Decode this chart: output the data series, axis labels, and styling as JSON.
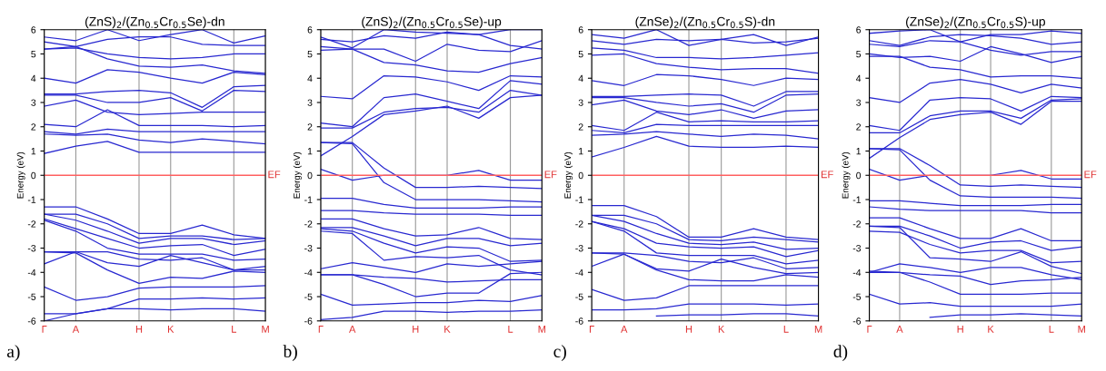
{
  "chart_data": [
    {
      "type": "line",
      "title": "(ZnS)$_{2}$/(Zn$_{0.5}$Cr$_{0.5}$Se)-dn",
      "ylabel": "Energy (eV)",
      "color": "#2828d0",
      "annotations": [
        "a)"
      ],
      "categories": [
        "Γ",
        "A",
        null,
        "H",
        "K",
        null,
        "L",
        "M"
      ],
      "ylim": [
        -6,
        6
      ],
      "yticks": [
        -6,
        -5,
        -4,
        -3,
        -2,
        -1,
        0,
        1,
        2,
        3,
        4,
        5,
        6
      ],
      "grid": "x",
      "ref_lines": [
        {
          "axis": "y",
          "value": 0,
          "label": "EF",
          "color": "#ff6060"
        }
      ],
      "series": [
        {
          "values": [
            0.9,
            1.2,
            1.4,
            0.95,
            0.95,
            0.95,
            0.95,
            0.95
          ]
        },
        {
          "values": [
            1.7,
            1.65,
            1.7,
            1.45,
            1.35,
            1.5,
            1.4,
            1.3
          ]
        },
        {
          "values": [
            1.8,
            1.7,
            1.9,
            1.8,
            1.8,
            1.8,
            1.8,
            1.8
          ]
        },
        {
          "values": [
            2.1,
            2.0,
            2.7,
            2.05,
            2.05,
            2.05,
            2.0,
            2.05
          ]
        },
        {
          "values": [
            2.85,
            3.1,
            2.6,
            2.5,
            2.55,
            2.6,
            2.6,
            2.6
          ]
        },
        {
          "values": [
            3.3,
            3.3,
            3.0,
            3.0,
            3.2,
            2.65,
            3.5,
            3.45
          ]
        },
        {
          "values": [
            3.35,
            3.35,
            3.45,
            3.5,
            3.4,
            2.8,
            3.65,
            3.7
          ]
        },
        {
          "values": [
            4.0,
            3.8,
            4.35,
            4.25,
            4.0,
            3.8,
            4.25,
            4.15
          ]
        },
        {
          "values": [
            5.2,
            5.3,
            4.8,
            4.5,
            4.45,
            4.55,
            4.3,
            4.2
          ]
        },
        {
          "values": [
            5.2,
            5.25,
            5.0,
            4.85,
            4.8,
            4.85,
            5.0,
            5.0
          ]
        },
        {
          "values": [
            5.5,
            5.3,
            5.6,
            5.7,
            5.7,
            5.4,
            5.35,
            5.35
          ]
        },
        {
          "values": [
            5.7,
            5.55,
            6.0,
            5.55,
            5.8,
            6.0,
            5.45,
            5.75
          ]
        },
        {
          "values": [
            -1.3,
            -1.3,
            -1.8,
            -2.4,
            -2.4,
            -2.05,
            -2.45,
            -2.6
          ]
        },
        {
          "values": [
            -1.6,
            -1.6,
            -2.0,
            -2.6,
            -2.5,
            -2.5,
            -2.65,
            -2.6
          ]
        },
        {
          "values": [
            -1.6,
            -1.85,
            -2.3,
            -2.8,
            -2.6,
            -2.6,
            -2.85,
            -2.7
          ]
        },
        {
          "values": [
            -1.8,
            -2.2,
            -2.6,
            -3.0,
            -2.9,
            -2.85,
            -3.3,
            -3.05
          ]
        },
        {
          "values": [
            -1.85,
            -2.3,
            -3.0,
            -3.25,
            -3.25,
            -3.25,
            -3.5,
            -3.45
          ]
        },
        {
          "values": [
            -3.15,
            -3.15,
            -3.15,
            -3.45,
            -3.5,
            -3.4,
            -3.9,
            -3.75
          ]
        },
        {
          "values": [
            -3.65,
            -3.15,
            -3.6,
            -3.75,
            -3.3,
            -3.6,
            -3.9,
            -3.9
          ]
        },
        {
          "values": [
            -3.15,
            -3.2,
            -3.9,
            -4.45,
            -4.2,
            -4.25,
            -3.95,
            -4.0
          ]
        },
        {
          "values": [
            -4.6,
            -5.15,
            -5.0,
            -4.65,
            -4.6,
            -4.6,
            -4.6,
            -4.55
          ]
        },
        {
          "values": [
            -5.7,
            -5.7,
            -5.5,
            -5.1,
            -5.1,
            -5.05,
            -5.1,
            -5.05
          ]
        },
        {
          "values": [
            -6.0,
            -5.7,
            -5.5,
            -5.5,
            -5.55,
            -5.5,
            -5.5,
            -5.6
          ]
        }
      ]
    },
    {
      "type": "line",
      "title": "(ZnS)$_{2}$/(Zn$_{0.5}$Cr$_{0.5}$Se)-up",
      "ylabel": "Energy (eV)",
      "color": "#2828d0",
      "annotations": [
        "b)"
      ],
      "categories": [
        "Γ",
        "A",
        null,
        "H",
        "K",
        null,
        "L",
        "M"
      ],
      "ylim": [
        -6,
        6
      ],
      "yticks": [
        -6,
        -5,
        -4,
        -3,
        -2,
        -1,
        0,
        1,
        2,
        3,
        4,
        5,
        6
      ],
      "grid": "x",
      "ref_lines": [
        {
          "axis": "y",
          "value": 0,
          "label": "EF",
          "color": "#ff6060"
        }
      ],
      "series": [
        {
          "values": [
            0.8,
            1.6,
            2.5,
            2.65,
            2.85,
            2.35,
            3.2,
            3.3
          ]
        },
        {
          "values": [
            1.95,
            1.95,
            2.6,
            2.75,
            2.8,
            2.6,
            3.5,
            3.3
          ]
        },
        {
          "values": [
            2.15,
            2.0,
            3.2,
            3.35,
            3.05,
            2.75,
            3.9,
            3.75
          ]
        },
        {
          "values": [
            3.25,
            3.15,
            4.1,
            4.05,
            3.85,
            3.5,
            4.1,
            4.05
          ]
        },
        {
          "values": [
            5.15,
            5.2,
            4.65,
            4.55,
            4.3,
            4.25,
            4.6,
            4.85
          ]
        },
        {
          "values": [
            5.3,
            5.2,
            5.2,
            4.7,
            5.4,
            5.15,
            5.1,
            5.55
          ]
        },
        {
          "values": [
            5.6,
            5.5,
            5.75,
            5.65,
            5.9,
            5.8,
            5.35,
            5.2
          ]
        },
        {
          "values": [
            5.7,
            5.25,
            6.0,
            5.9,
            5.85,
            5.8,
            6.0,
            6.0
          ]
        },
        {
          "values": [
            0.25,
            -0.2,
            0.0,
            0.0,
            0.0,
            0.2,
            -0.2,
            -0.2
          ]
        },
        {
          "values": [
            1.35,
            1.35,
            0.3,
            -0.5,
            -0.5,
            -0.45,
            -0.5,
            -0.55
          ]
        },
        {
          "values": [
            1.35,
            1.3,
            -0.3,
            -1.0,
            -1.0,
            -1.0,
            -1.05,
            -1.1
          ]
        },
        {
          "values": [
            -0.95,
            -0.95,
            -1.2,
            -1.35,
            -1.35,
            -1.35,
            -1.3,
            -1.3
          ]
        },
        {
          "values": [
            -1.45,
            -1.45,
            -1.55,
            -1.6,
            -1.6,
            -1.6,
            -1.65,
            -1.65
          ]
        },
        {
          "values": [
            -1.8,
            -1.8,
            -2.2,
            -2.5,
            -2.45,
            -2.15,
            -2.6,
            -2.65
          ]
        },
        {
          "values": [
            -2.15,
            -2.15,
            -2.5,
            -2.9,
            -2.6,
            -2.6,
            -2.9,
            -2.8
          ]
        },
        {
          "values": [
            -2.2,
            -2.3,
            -2.8,
            -3.2,
            -2.95,
            -3.0,
            -3.55,
            -3.5
          ]
        },
        {
          "values": [
            -2.3,
            -2.4,
            -3.5,
            -3.35,
            -3.4,
            -3.3,
            -3.9,
            -4.1
          ]
        },
        {
          "values": [
            -3.85,
            -3.6,
            -3.8,
            -4.0,
            -3.65,
            -3.75,
            -3.65,
            -3.55
          ]
        },
        {
          "values": [
            -4.1,
            -4.1,
            -4.5,
            -5.0,
            -4.85,
            -4.85,
            -4.05,
            -4.0
          ]
        },
        {
          "values": [
            -4.1,
            -4.1,
            -4.2,
            -4.25,
            -4.4,
            -4.35,
            -4.3,
            -4.3
          ]
        },
        {
          "values": [
            -4.9,
            -5.35,
            -5.3,
            -5.25,
            -5.25,
            -5.15,
            -5.2,
            -4.95
          ]
        },
        {
          "values": [
            -5.95,
            -5.85,
            -5.6,
            -5.6,
            -5.65,
            -5.6,
            -5.6,
            -5.55
          ]
        }
      ]
    },
    {
      "type": "line",
      "title": "(ZnSe)$_{2}$/(Zn$_{0.5}$Cr$_{0.5}$S)-dn",
      "ylabel": "Energy (eV)",
      "color": "#2828d0",
      "annotations": [
        "c)"
      ],
      "categories": [
        "Γ",
        "A",
        null,
        "H",
        "K",
        null,
        "L",
        "M"
      ],
      "ylim": [
        -6,
        6
      ],
      "yticks": [
        -6,
        -5,
        -4,
        -3,
        -2,
        -1,
        0,
        1,
        2,
        3,
        4,
        5,
        6
      ],
      "grid": "x",
      "ref_lines": [
        {
          "axis": "y",
          "value": 0,
          "label": "EF",
          "color": "#ff6060"
        }
      ],
      "series": [
        {
          "values": [
            0.75,
            1.15,
            1.6,
            1.2,
            1.15,
            1.15,
            1.2,
            1.15
          ]
        },
        {
          "values": [
            1.65,
            1.7,
            1.8,
            1.7,
            1.6,
            1.7,
            1.65,
            1.5
          ]
        },
        {
          "values": [
            1.85,
            1.75,
            2.1,
            2.05,
            2.05,
            2.05,
            2.05,
            2.05
          ]
        },
        {
          "values": [
            2.05,
            1.85,
            2.6,
            2.2,
            2.25,
            2.2,
            2.2,
            2.25
          ]
        },
        {
          "values": [
            2.9,
            3.1,
            2.65,
            2.5,
            2.7,
            2.35,
            2.65,
            2.7
          ]
        },
        {
          "values": [
            3.2,
            3.2,
            3.0,
            2.85,
            2.95,
            2.6,
            3.3,
            3.35
          ]
        },
        {
          "values": [
            3.25,
            3.25,
            3.3,
            3.35,
            3.3,
            2.85,
            3.45,
            3.45
          ]
        },
        {
          "values": [
            3.9,
            3.7,
            4.15,
            4.1,
            3.95,
            3.7,
            4.0,
            3.95
          ]
        },
        {
          "values": [
            4.95,
            5.0,
            4.6,
            4.45,
            4.35,
            4.4,
            4.4,
            4.2
          ]
        },
        {
          "values": [
            5.25,
            5.15,
            4.85,
            4.85,
            4.8,
            4.85,
            4.95,
            5.05
          ]
        },
        {
          "values": [
            5.55,
            5.4,
            5.6,
            5.55,
            5.6,
            5.45,
            5.5,
            5.65
          ]
        },
        {
          "values": [
            5.8,
            5.65,
            6.0,
            5.35,
            5.6,
            5.8,
            5.35,
            5.7
          ]
        },
        {
          "values": [
            -1.25,
            -1.25,
            -1.7,
            -2.55,
            -2.55,
            -2.2,
            -2.55,
            -2.65
          ]
        },
        {
          "values": [
            -1.65,
            -1.65,
            -2.0,
            -2.65,
            -2.7,
            -2.55,
            -2.65,
            -2.75
          ]
        },
        {
          "values": [
            -1.65,
            -1.9,
            -2.4,
            -2.8,
            -2.85,
            -2.75,
            -3.05,
            -3.0
          ]
        },
        {
          "values": [
            -1.9,
            -2.2,
            -2.8,
            -2.95,
            -3.0,
            -2.95,
            -3.35,
            -3.1
          ]
        },
        {
          "values": [
            -1.9,
            -2.3,
            -3.2,
            -3.3,
            -3.3,
            -3.3,
            -3.65,
            -3.5
          ]
        },
        {
          "values": [
            -3.2,
            -3.2,
            -3.3,
            -3.55,
            -3.6,
            -3.4,
            -3.85,
            -3.8
          ]
        },
        {
          "values": [
            -3.75,
            -3.25,
            -3.85,
            -3.95,
            -3.45,
            -3.8,
            -4.05,
            -4.0
          ]
        },
        {
          "values": [
            -3.2,
            -3.25,
            -3.9,
            -4.3,
            -4.35,
            -4.35,
            -4.1,
            -4.2
          ]
        },
        {
          "values": [
            -4.7,
            -5.15,
            -5.05,
            -4.55,
            -4.55,
            -4.55,
            -4.55,
            -4.55
          ]
        },
        {
          "values": [
            -5.55,
            -5.55,
            -5.5,
            -5.3,
            -5.3,
            -5.3,
            -5.35,
            -5.3
          ]
        },
        {
          "values": [
            null,
            null,
            -5.8,
            -5.75,
            -5.75,
            -5.7,
            -5.7,
            -5.8
          ]
        }
      ]
    },
    {
      "type": "line",
      "title": "(ZnSe)$_{2}$/(Zn$_{0.5}$Cr$_{0.5}$S)-up",
      "ylabel": "Energy (eV)",
      "color": "#2828d0",
      "annotations": [
        "d)"
      ],
      "categories": [
        "Γ",
        "A",
        null,
        "H",
        "K",
        null,
        "L",
        "M"
      ],
      "ylim": [
        -6,
        6
      ],
      "yticks": [
        -6,
        -5,
        -4,
        -3,
        -2,
        -1,
        0,
        1,
        2,
        3,
        4,
        5,
        6
      ],
      "grid": "x",
      "ref_lines": [
        {
          "axis": "y",
          "value": 0,
          "label": "EF",
          "color": "#ff6060"
        }
      ],
      "series": [
        {
          "values": [
            0.7,
            1.55,
            2.3,
            2.5,
            2.6,
            2.1,
            3.05,
            3.05
          ]
        },
        {
          "values": [
            1.75,
            1.75,
            2.45,
            2.65,
            2.65,
            2.35,
            3.1,
            3.15
          ]
        },
        {
          "values": [
            2.05,
            1.85,
            3.1,
            3.2,
            3.15,
            2.65,
            3.25,
            3.2
          ]
        },
        {
          "values": [
            3.2,
            3.0,
            3.8,
            3.95,
            3.75,
            3.4,
            3.75,
            3.6
          ]
        },
        {
          "values": [
            4.9,
            4.9,
            4.45,
            4.35,
            4.05,
            4.1,
            4.1,
            4.0
          ]
        },
        {
          "values": [
            5.0,
            4.85,
            4.9,
            4.7,
            5.3,
            5.0,
            4.65,
            4.9
          ]
        },
        {
          "values": [
            5.4,
            5.3,
            5.55,
            5.5,
            5.15,
            4.95,
            5.1,
            5.1
          ]
        },
        {
          "values": [
            5.55,
            5.35,
            5.7,
            5.8,
            5.75,
            5.65,
            5.4,
            5.5
          ]
        },
        {
          "values": [
            5.85,
            5.95,
            6.0,
            5.5,
            5.8,
            5.8,
            5.95,
            5.85
          ]
        },
        {
          "values": [
            0.25,
            -0.2,
            0.0,
            0.0,
            0.0,
            0.2,
            -0.15,
            -0.15
          ]
        },
        {
          "values": [
            1.1,
            1.1,
            0.4,
            -0.4,
            -0.45,
            -0.4,
            -0.45,
            -0.5
          ]
        },
        {
          "values": [
            1.1,
            1.05,
            -0.2,
            -0.85,
            -0.9,
            -0.9,
            -0.9,
            -0.95
          ]
        },
        {
          "values": [
            -1.05,
            -1.05,
            -1.15,
            -1.25,
            -1.25,
            -1.25,
            -1.2,
            -1.2
          ]
        },
        {
          "values": [
            -1.3,
            -1.4,
            -1.45,
            -1.45,
            -1.45,
            -1.45,
            -1.55,
            -1.55
          ]
        },
        {
          "values": [
            -1.75,
            -1.75,
            -2.2,
            -2.6,
            -2.6,
            -2.2,
            -2.7,
            -2.7
          ]
        },
        {
          "values": [
            -2.1,
            -2.1,
            -2.5,
            -3.0,
            -2.75,
            -2.7,
            -3.1,
            -2.95
          ]
        },
        {
          "values": [
            -2.3,
            -2.35,
            -2.85,
            -3.2,
            -3.1,
            -3.1,
            -3.6,
            -3.55
          ]
        },
        {
          "values": [
            -2.1,
            -2.15,
            -3.4,
            -3.45,
            -3.55,
            -3.15,
            -3.75,
            -4.05
          ]
        },
        {
          "values": [
            -4.0,
            -3.65,
            -3.8,
            -4.0,
            -3.8,
            -3.8,
            -4.1,
            -4.3
          ]
        },
        {
          "values": [
            -4.0,
            -4.0,
            -4.4,
            -4.9,
            -4.9,
            -4.9,
            -4.85,
            -4.85
          ]
        },
        {
          "values": [
            -3.95,
            -4.0,
            -4.1,
            -4.15,
            -4.5,
            -4.35,
            -4.3,
            -4.2
          ]
        },
        {
          "values": [
            -4.9,
            -5.3,
            -5.25,
            -5.4,
            -5.4,
            -5.4,
            -5.4,
            -5.3
          ]
        },
        {
          "values": [
            null,
            null,
            -5.85,
            -5.75,
            -5.75,
            -5.7,
            -5.75,
            -5.8
          ]
        }
      ]
    }
  ]
}
